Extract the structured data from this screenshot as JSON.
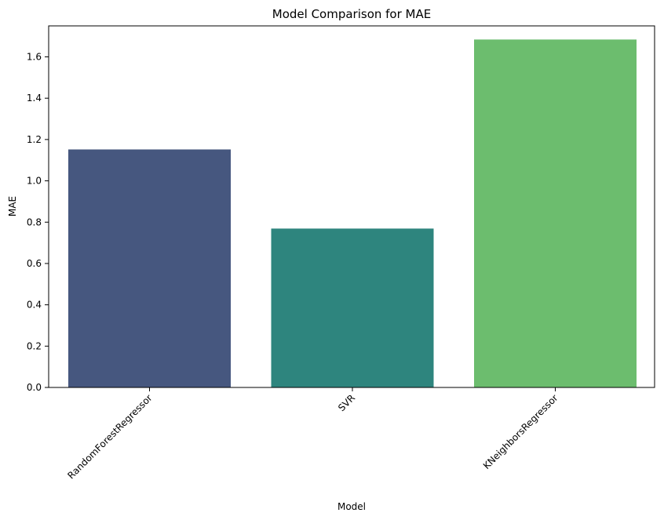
{
  "chart_data": {
    "type": "bar",
    "title": "Model Comparison for MAE",
    "xlabel": "Model",
    "ylabel": "MAE",
    "categories": [
      "RandomForestRegressor",
      "SVR",
      "KNeighborsRegressor"
    ],
    "values": [
      1.152,
      0.769,
      1.684
    ],
    "colors": [
      "#46577f",
      "#2e857e",
      "#6cbd6e"
    ],
    "ylim": [
      0,
      1.75
    ],
    "yticks": [
      0.0,
      0.2,
      0.4,
      0.6,
      0.8,
      1.0,
      1.2,
      1.4,
      1.6
    ],
    "ytick_labels": [
      "0.0",
      "0.2",
      "0.4",
      "0.6",
      "0.8",
      "1.0",
      "1.2",
      "1.4",
      "1.6"
    ],
    "grid": false,
    "legend": false
  }
}
